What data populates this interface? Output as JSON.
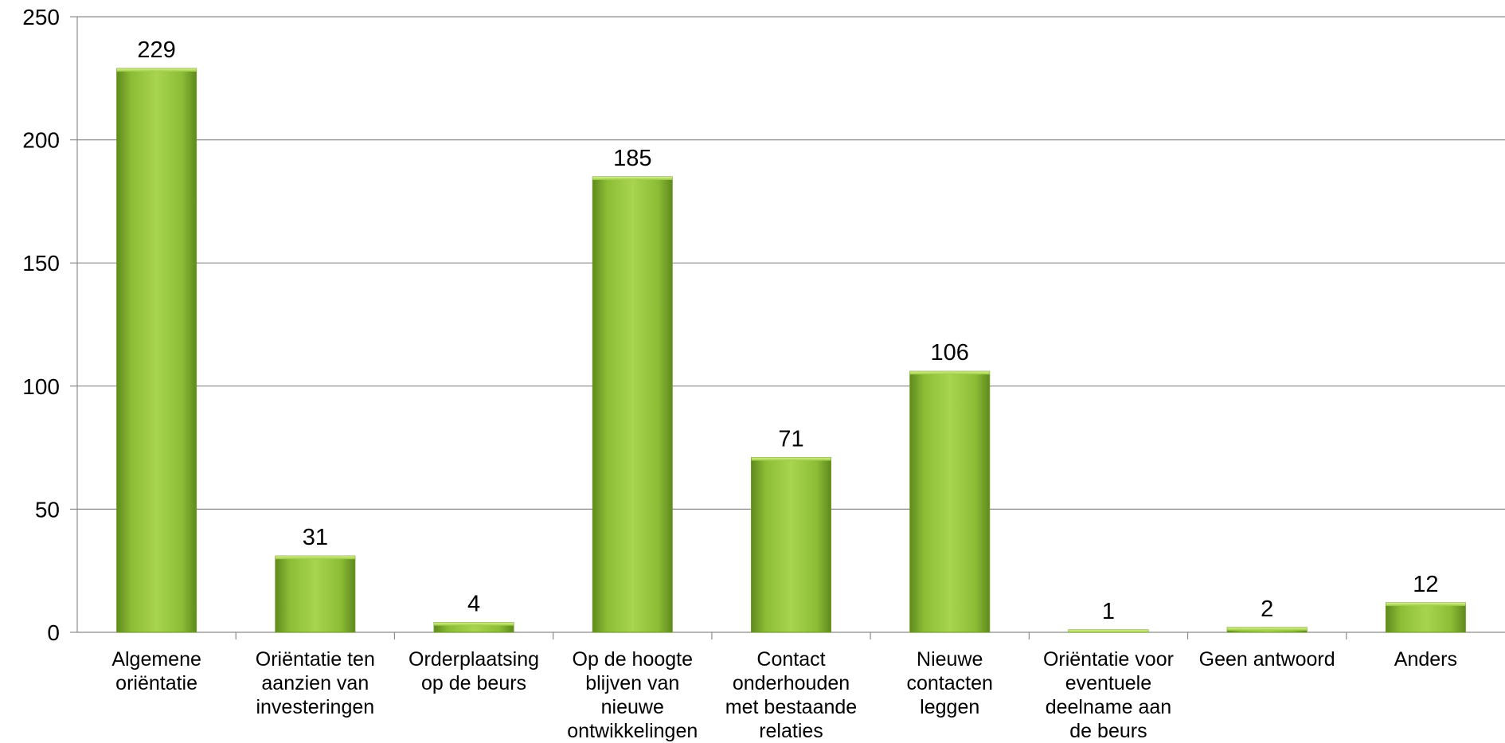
{
  "chart_data": {
    "type": "bar",
    "title": "",
    "xlabel": "",
    "ylabel": "",
    "ylim": [
      0,
      250
    ],
    "yticks": [
      0,
      50,
      100,
      150,
      200,
      250
    ],
    "grid": "horizontal",
    "legend": "none",
    "bar_color": "#8fc23a",
    "categories": [
      "Algemene\noriëntatie",
      "Oriëntatie ten\naanzien van\ninvesteringen",
      "Orderplaatsing\nop de beurs",
      "Op de hoogte\nblijven van\nnieuwe\nontwikkelingen",
      "Contact\nonderhouden\nmet bestaande\nrelaties",
      "Nieuwe\ncontacten\nleggen",
      "Oriëntatie voor\neventuele\ndeelname aan\nde beurs",
      "Geen antwoord",
      "Anders"
    ],
    "values": [
      229,
      31,
      4,
      185,
      71,
      106,
      1,
      2,
      12
    ]
  }
}
